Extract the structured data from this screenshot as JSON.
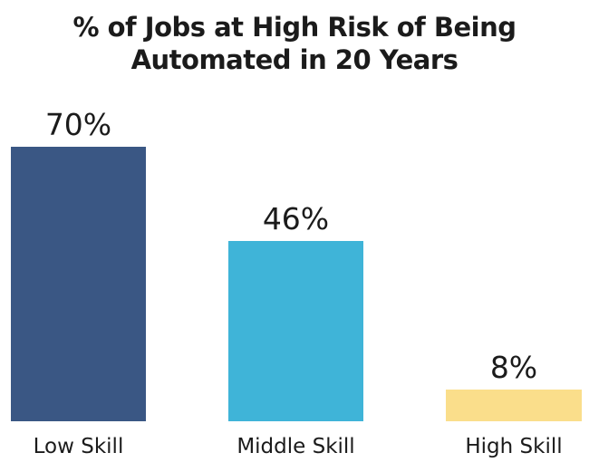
{
  "chart_data": {
    "type": "bar",
    "title": "% of Jobs at High Risk of Being Automated in 20 Years",
    "title_line1": "% of Jobs at High Risk of Being",
    "title_line2": "Automated in 20 Years",
    "categories": [
      "Low Skill",
      "Middle Skill",
      "High Skill"
    ],
    "values": [
      70,
      46,
      8
    ],
    "value_labels": [
      "70%",
      "46%",
      "8%"
    ],
    "bar_colors": [
      "#3a5784",
      "#3fb4d8",
      "#fade8b"
    ],
    "xlabel": "",
    "ylabel": "",
    "ylim": [
      0,
      70
    ],
    "grid": false,
    "legend": false,
    "background_color": "#ffffff",
    "text_color": "#1b1b1b"
  }
}
